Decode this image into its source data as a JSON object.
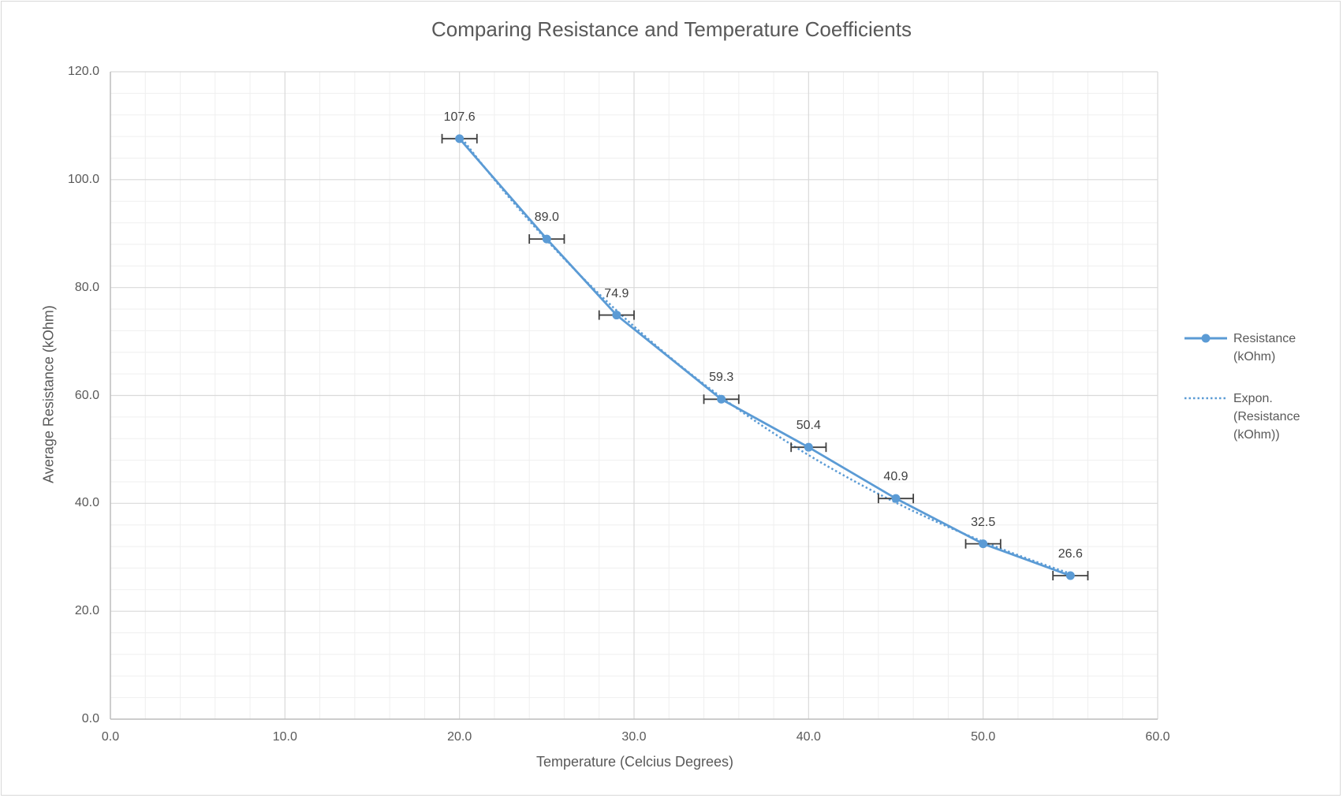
{
  "colors": {
    "series": "#5b9bd5",
    "errorbar": "#404040",
    "grid_major": "#d9d9d9",
    "grid_minor": "#efefef",
    "text": "#595959"
  },
  "chart_data": {
    "type": "scatter",
    "title": "Comparing Resistance and Temperature Coefficients",
    "xlabel": "Temperature (Celcius Degrees)",
    "ylabel": "Average Resistance (kOhm)",
    "xlim": [
      0,
      60
    ],
    "ylim": [
      0,
      120
    ],
    "x_ticks": [
      "0.0",
      "10.0",
      "20.0",
      "30.0",
      "40.0",
      "50.0",
      "60.0"
    ],
    "y_ticks": [
      "0.0",
      "20.0",
      "40.0",
      "60.0",
      "80.0",
      "100.0",
      "120.0"
    ],
    "grid": true,
    "legend_position": "right",
    "series": [
      {
        "name": "Resistance (kOhm)",
        "style": "line-with-markers",
        "x": [
          20,
          25,
          29,
          35,
          40,
          45,
          50,
          55
        ],
        "y": [
          107.6,
          89.0,
          74.9,
          59.3,
          50.4,
          40.9,
          32.5,
          26.6
        ],
        "data_labels": [
          "107.6",
          "89.0",
          "74.9",
          "59.3",
          "50.4",
          "40.9",
          "32.5",
          "26.6"
        ],
        "x_error": 1
      }
    ],
    "trendline": {
      "name": "Expon. (Resistance (kOhm))",
      "type": "exponential",
      "style": "dotted"
    }
  }
}
